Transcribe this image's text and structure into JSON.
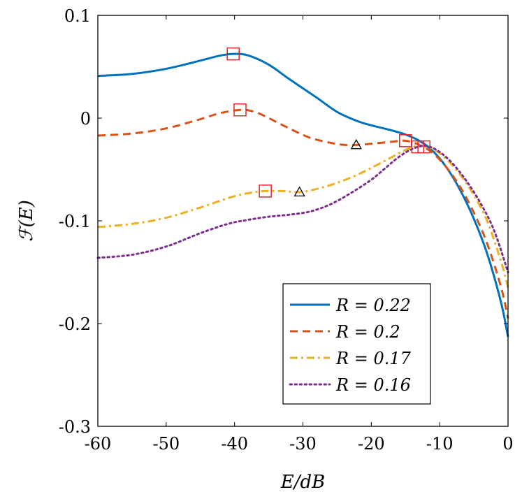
{
  "chart_data": {
    "type": "line",
    "title": "",
    "xlabel": "E/dB",
    "ylabel": "ℱ(E)",
    "xlim": [
      -60,
      0
    ],
    "ylim": [
      -0.3,
      0.1
    ],
    "x_ticks": [
      -60,
      -50,
      -40,
      -30,
      -20,
      -10,
      0
    ],
    "x_tick_labels": [
      "-60",
      "-50",
      "-40",
      "-30",
      "-20",
      "-10",
      "0"
    ],
    "y_ticks": [
      -0.3,
      -0.2,
      -0.1,
      0,
      0.1
    ],
    "y_tick_labels": [
      "-0.3",
      "-0.2",
      "-0.1",
      "0",
      "0.1"
    ],
    "grid": false,
    "legend_position": "bottom-right",
    "series": [
      {
        "name": "R = 0.22",
        "color": "#0072BD",
        "dash": "solid",
        "points": [
          [
            -60,
            0.041
          ],
          [
            -55,
            0.043
          ],
          [
            -50,
            0.048
          ],
          [
            -45,
            0.056
          ],
          [
            -42,
            0.061
          ],
          [
            -40,
            0.0625
          ],
          [
            -38,
            0.061
          ],
          [
            -35,
            0.052
          ],
          [
            -32,
            0.038
          ],
          [
            -28,
            0.02
          ],
          [
            -25,
            0.006
          ],
          [
            -22,
            -0.003
          ],
          [
            -20,
            -0.007
          ],
          [
            -17,
            -0.012
          ],
          [
            -15,
            -0.016
          ],
          [
            -13,
            -0.022
          ],
          [
            -11,
            -0.032
          ],
          [
            -9,
            -0.048
          ],
          [
            -7,
            -0.07
          ],
          [
            -5,
            -0.098
          ],
          [
            -3,
            -0.133
          ],
          [
            -1,
            -0.18
          ],
          [
            0,
            -0.213
          ]
        ]
      },
      {
        "name": "R = 0.2",
        "color": "#D95319",
        "dash": "dashed",
        "points": [
          [
            -60,
            -0.017
          ],
          [
            -55,
            -0.015
          ],
          [
            -50,
            -0.01
          ],
          [
            -45,
            -0.001
          ],
          [
            -42,
            0.005
          ],
          [
            -39,
            0.008
          ],
          [
            -37,
            0.006
          ],
          [
            -35,
            0.0
          ],
          [
            -32,
            -0.01
          ],
          [
            -29,
            -0.019
          ],
          [
            -26,
            -0.024
          ],
          [
            -24,
            -0.026
          ],
          [
            -22,
            -0.026
          ],
          [
            -20,
            -0.025
          ],
          [
            -17,
            -0.023
          ],
          [
            -15,
            -0.022
          ],
          [
            -13,
            -0.026
          ],
          [
            -11,
            -0.034
          ],
          [
            -9,
            -0.048
          ],
          [
            -7,
            -0.067
          ],
          [
            -5,
            -0.092
          ],
          [
            -3,
            -0.123
          ],
          [
            -1,
            -0.165
          ],
          [
            0,
            -0.195
          ]
        ]
      },
      {
        "name": "R = 0.17",
        "color": "#EDB120",
        "dash": "dashdot",
        "points": [
          [
            -60,
            -0.106
          ],
          [
            -55,
            -0.103
          ],
          [
            -50,
            -0.097
          ],
          [
            -45,
            -0.087
          ],
          [
            -40,
            -0.076
          ],
          [
            -37,
            -0.072
          ],
          [
            -35.5,
            -0.071
          ],
          [
            -33,
            -0.071
          ],
          [
            -30.5,
            -0.072
          ],
          [
            -28,
            -0.069
          ],
          [
            -25,
            -0.063
          ],
          [
            -22,
            -0.055
          ],
          [
            -19,
            -0.045
          ],
          [
            -17,
            -0.038
          ],
          [
            -15,
            -0.031
          ],
          [
            -13,
            -0.027
          ],
          [
            -11,
            -0.03
          ],
          [
            -9,
            -0.04
          ],
          [
            -7,
            -0.055
          ],
          [
            -5,
            -0.075
          ],
          [
            -3,
            -0.101
          ],
          [
            -1,
            -0.14
          ],
          [
            0,
            -0.165
          ]
        ]
      },
      {
        "name": "R = 0.16",
        "color": "#7E2F8E",
        "dash": "dotted",
        "points": [
          [
            -60,
            -0.136
          ],
          [
            -55,
            -0.133
          ],
          [
            -50,
            -0.125
          ],
          [
            -45,
            -0.112
          ],
          [
            -41,
            -0.103
          ],
          [
            -38,
            -0.099
          ],
          [
            -35,
            -0.096
          ],
          [
            -32,
            -0.094
          ],
          [
            -29,
            -0.091
          ],
          [
            -26,
            -0.084
          ],
          [
            -23,
            -0.073
          ],
          [
            -20,
            -0.06
          ],
          [
            -18,
            -0.049
          ],
          [
            -16,
            -0.038
          ],
          [
            -14,
            -0.03
          ],
          [
            -12,
            -0.027
          ],
          [
            -10,
            -0.033
          ],
          [
            -8,
            -0.045
          ],
          [
            -6,
            -0.062
          ],
          [
            -4,
            -0.083
          ],
          [
            -2,
            -0.11
          ],
          [
            0,
            -0.15
          ]
        ]
      }
    ],
    "square_markers": [
      [
        -40.2,
        0.0625
      ],
      [
        -39.2,
        0.008
      ],
      [
        -35.5,
        -0.071
      ],
      [
        -15,
        -0.022
      ],
      [
        -13.2,
        -0.028
      ],
      [
        -12.3,
        -0.028
      ]
    ],
    "triangle_markers": [
      [
        -22.2,
        -0.026
      ],
      [
        -30.5,
        -0.072
      ]
    ],
    "marker_colors": {
      "square": "#E8232A",
      "triangle": "#000000"
    }
  }
}
